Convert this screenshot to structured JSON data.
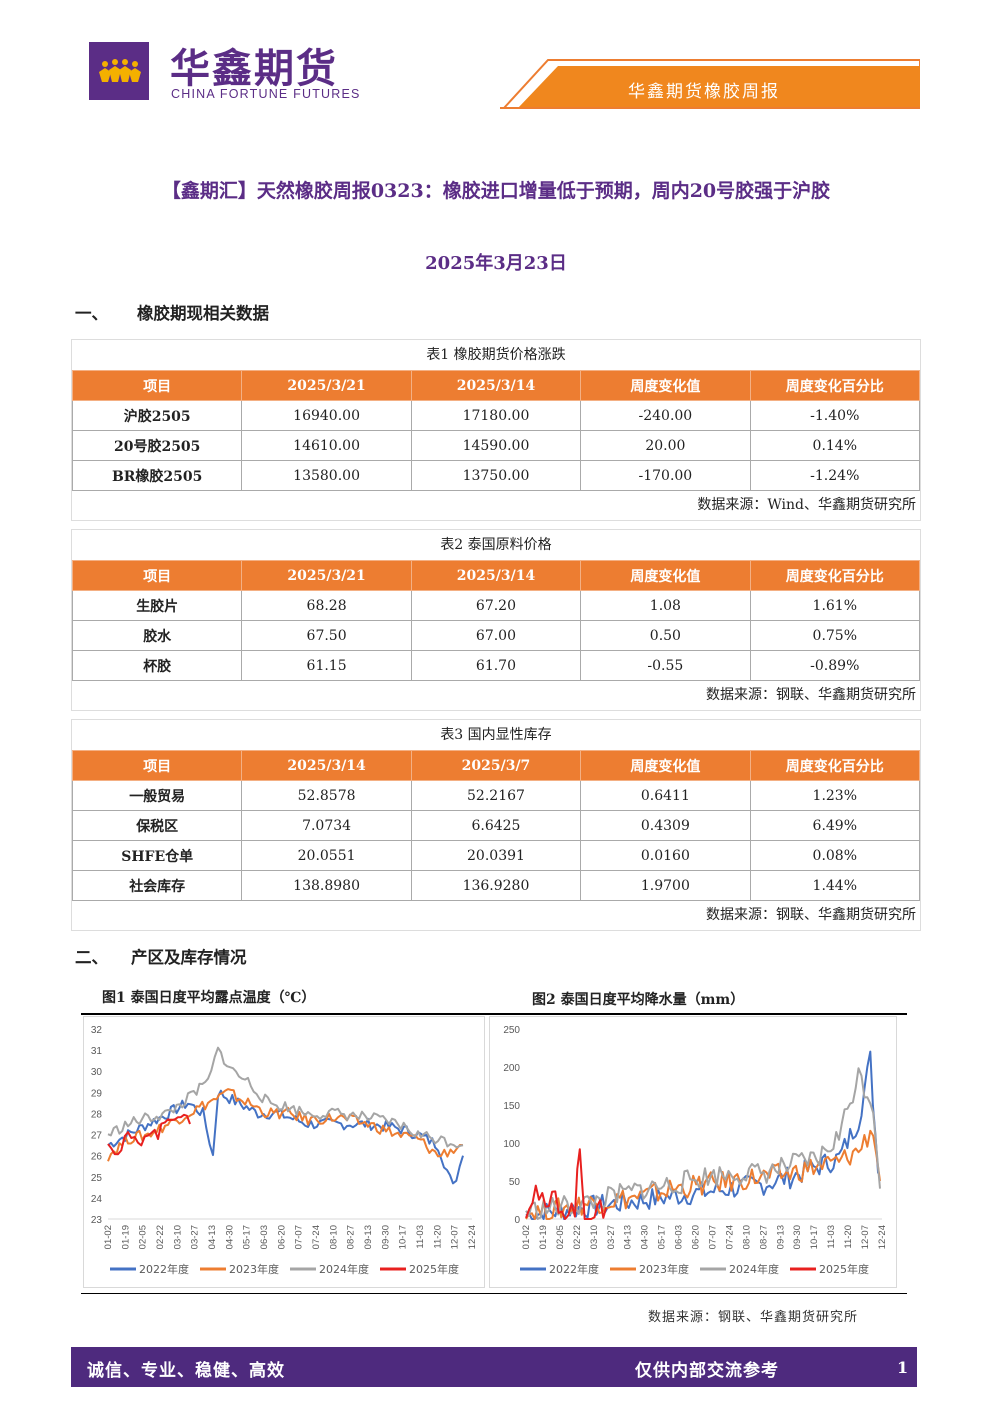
{
  "header": {
    "brand_cn": "华鑫期货",
    "brand_en": "CHINA FORTUNE FUTURES",
    "report_name": "华鑫期货橡胶周报",
    "colors": {
      "purple": "#5b2d86",
      "orange": "#ed7d31"
    }
  },
  "title": "【鑫期汇】天然橡胶周报0323：橡胶进口增量低于预期，周内20号胶强于沪胶",
  "date": "2025年3月23日",
  "sections": [
    {
      "num": "一、",
      "title": "橡胶期现相关数据"
    },
    {
      "num": "二、",
      "title": "产区及库存情况"
    }
  ],
  "tables": [
    {
      "caption": "表1  橡胶期货价格涨跌",
      "headers": [
        "项目",
        "2025/3/21",
        "2025/3/14",
        "周度变化值",
        "周度变化百分比"
      ],
      "rows": [
        [
          "沪胶2505",
          "16940.00",
          "17180.00",
          "-240.00",
          "-1.40%"
        ],
        [
          "20号胶2505",
          "14610.00",
          "14590.00",
          "20.00",
          "0.14%"
        ],
        [
          "BR橡胶2505",
          "13580.00",
          "13750.00",
          "-170.00",
          "-1.24%"
        ]
      ],
      "source": "数据来源：Wind、华鑫期货研究所"
    },
    {
      "caption": "表2  泰国原料价格",
      "headers": [
        "项目",
        "2025/3/21",
        "2025/3/14",
        "周度变化值",
        "周度变化百分比"
      ],
      "rows": [
        [
          "生胶片",
          "68.28",
          "67.20",
          "1.08",
          "1.61%"
        ],
        [
          "胶水",
          "67.50",
          "67.00",
          "0.50",
          "0.75%"
        ],
        [
          "杯胶",
          "61.15",
          "61.70",
          "-0.55",
          "-0.89%"
        ]
      ],
      "source": "数据来源：钢联、华鑫期货研究所"
    },
    {
      "caption": "表3  国内显性库存",
      "headers": [
        "项目",
        "2025/3/14",
        "2025/3/7",
        "周度变化值",
        "周度变化百分比"
      ],
      "rows": [
        [
          "一般贸易",
          "52.8578",
          "52.2167",
          "0.6411",
          "1.23%"
        ],
        [
          "保税区",
          "7.0734",
          "6.6425",
          "0.4309",
          "6.49%"
        ],
        [
          "SHFE仓单",
          "20.0551",
          "20.0391",
          "0.0160",
          "0.08%"
        ],
        [
          "社会库存",
          "138.8980",
          "136.9280",
          "1.9700",
          "1.44%"
        ]
      ],
      "source": "数据来源：钢联、华鑫期货研究所"
    }
  ],
  "figures_source": "数据来源：钢联、华鑫期货研究所",
  "chart_data": [
    {
      "type": "line",
      "title": "图1  泰国日度平均露点温度（℃）",
      "x_ticks": [
        "01-02",
        "01-19",
        "02-05",
        "02-22",
        "03-10",
        "03-27",
        "04-13",
        "04-30",
        "05-17",
        "06-03",
        "06-20",
        "07-07",
        "07-24",
        "08-10",
        "08-27",
        "09-13",
        "09-30",
        "10-17",
        "11-03",
        "11-20",
        "12-07",
        "12-24"
      ],
      "ylim": [
        23,
        32
      ],
      "yticks": [
        23,
        24,
        25,
        26,
        27,
        28,
        29,
        30,
        31,
        32
      ],
      "series": [
        {
          "name": "2022年度",
          "color": "#4472c4",
          "points": [
            [
              0,
              26.5
            ],
            [
              20,
              27
            ],
            [
              40,
              27.5
            ],
            [
              60,
              28
            ],
            [
              80,
              28.5
            ],
            [
              95,
              28
            ],
            [
              105,
              26
            ],
            [
              110,
              29
            ],
            [
              130,
              28.5
            ],
            [
              150,
              28
            ],
            [
              170,
              28
            ],
            [
              200,
              27.5
            ],
            [
              230,
              27.5
            ],
            [
              260,
              27.5
            ],
            [
              290,
              27.3
            ],
            [
              310,
              27
            ],
            [
              330,
              26.5
            ],
            [
              345,
              24.5
            ],
            [
              355,
              26
            ]
          ]
        },
        {
          "name": "2023年度",
          "color": "#ed7d31",
          "points": [
            [
              0,
              26
            ],
            [
              20,
              26.8
            ],
            [
              40,
              27
            ],
            [
              60,
              27.5
            ],
            [
              80,
              28
            ],
            [
              100,
              28.5
            ],
            [
              120,
              29
            ],
            [
              140,
              28.5
            ],
            [
              160,
              28
            ],
            [
              180,
              28
            ],
            [
              200,
              27.7
            ],
            [
              230,
              27.8
            ],
            [
              260,
              27.5
            ],
            [
              290,
              27
            ],
            [
              310,
              26.8
            ],
            [
              330,
              26
            ],
            [
              355,
              26.5
            ]
          ]
        },
        {
          "name": "2024年度",
          "color": "#a5a5a5",
          "points": [
            [
              0,
              27
            ],
            [
              20,
              27.5
            ],
            [
              40,
              27.8
            ],
            [
              60,
              28
            ],
            [
              80,
              28.7
            ],
            [
              100,
              29.5
            ],
            [
              110,
              31
            ],
            [
              125,
              30
            ],
            [
              140,
              29.5
            ],
            [
              160,
              28.5
            ],
            [
              180,
              28.3
            ],
            [
              200,
              28
            ],
            [
              230,
              28
            ],
            [
              260,
              27.8
            ],
            [
              290,
              27.5
            ],
            [
              310,
              27
            ],
            [
              330,
              26.8
            ],
            [
              355,
              26.5
            ]
          ]
        },
        {
          "name": "2025年度",
          "color": "#e8201f",
          "points": [
            [
              0,
              26.8
            ],
            [
              10,
              26
            ],
            [
              20,
              27
            ],
            [
              30,
              26.5
            ],
            [
              40,
              27.2
            ],
            [
              50,
              27
            ],
            [
              60,
              27.8
            ],
            [
              70,
              28
            ],
            [
              82,
              27.5
            ]
          ]
        }
      ]
    },
    {
      "type": "line",
      "title": "图2  泰国日度平均降水量（mm）",
      "x_ticks": [
        "01-02",
        "01-19",
        "02-05",
        "02-22",
        "03-10",
        "03-27",
        "04-13",
        "04-30",
        "05-17",
        "06-03",
        "06-20",
        "07-07",
        "07-24",
        "08-10",
        "08-27",
        "09-13",
        "09-30",
        "10-17",
        "11-03",
        "11-20",
        "12-07",
        "12-24"
      ],
      "ylim": [
        0,
        250
      ],
      "yticks": [
        0,
        50,
        100,
        150,
        200,
        250
      ],
      "series": [
        {
          "name": "2022年度",
          "color": "#4472c4",
          "points": [
            [
              0,
              5
            ],
            [
              30,
              10
            ],
            [
              60,
              15
            ],
            [
              90,
              20
            ],
            [
              120,
              25
            ],
            [
              150,
              30
            ],
            [
              180,
              35
            ],
            [
              210,
              40
            ],
            [
              240,
              45
            ],
            [
              270,
              55
            ],
            [
              300,
              70
            ],
            [
              320,
              80
            ],
            [
              340,
              130
            ],
            [
              352,
              210
            ],
            [
              360,
              60
            ]
          ]
        },
        {
          "name": "2023年度",
          "color": "#ed7d31",
          "points": [
            [
              0,
              8
            ],
            [
              30,
              12
            ],
            [
              60,
              20
            ],
            [
              90,
              25
            ],
            [
              120,
              30
            ],
            [
              150,
              40
            ],
            [
              180,
              45
            ],
            [
              210,
              50
            ],
            [
              240,
              55
            ],
            [
              270,
              60
            ],
            [
              300,
              70
            ],
            [
              320,
              75
            ],
            [
              340,
              90
            ],
            [
              355,
              120
            ],
            [
              362,
              50
            ]
          ]
        },
        {
          "name": "2024年度",
          "color": "#a5a5a5",
          "points": [
            [
              0,
              10
            ],
            [
              30,
              15
            ],
            [
              60,
              20
            ],
            [
              90,
              30
            ],
            [
              120,
              40
            ],
            [
              150,
              45
            ],
            [
              180,
              55
            ],
            [
              210,
              60
            ],
            [
              240,
              60
            ],
            [
              270,
              70
            ],
            [
              300,
              80
            ],
            [
              320,
              110
            ],
            [
              340,
              190
            ],
            [
              355,
              150
            ],
            [
              362,
              40
            ]
          ]
        },
        {
          "name": "2025年度",
          "color": "#e8201f",
          "points": [
            [
              0,
              15
            ],
            [
              10,
              40
            ],
            [
              20,
              10
            ],
            [
              30,
              30
            ],
            [
              40,
              5
            ],
            [
              50,
              15
            ],
            [
              55,
              90
            ],
            [
              60,
              10
            ],
            [
              70,
              5
            ],
            [
              82,
              15
            ]
          ]
        }
      ]
    }
  ],
  "footer": {
    "left": "诚信、专业、稳健、高效",
    "right": "仅供内部交流参考",
    "page": "1"
  }
}
